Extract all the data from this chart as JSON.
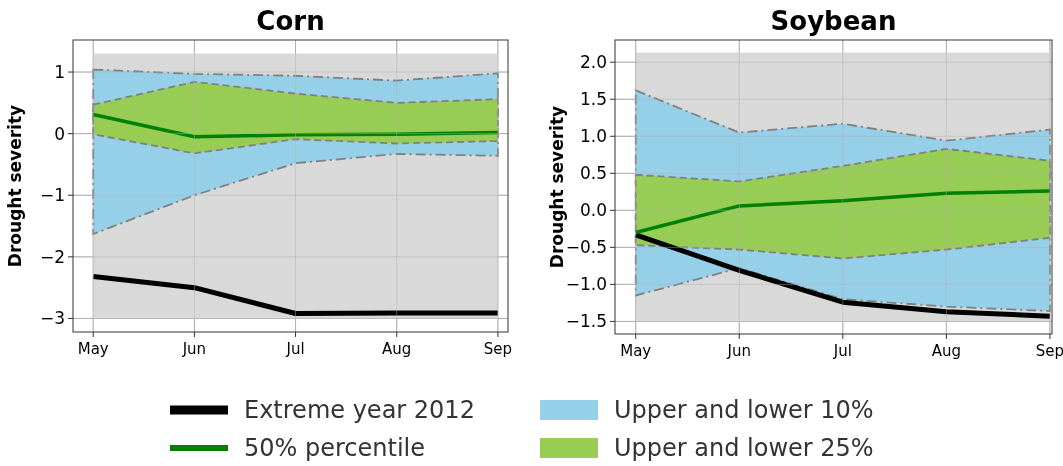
{
  "chart_data": [
    {
      "type": "line",
      "title": "Corn",
      "ylabel": "Drought severity",
      "categories": [
        "May",
        "Jun",
        "Jul",
        "Aug",
        "Sep"
      ],
      "ylim": [
        -3.22,
        1.52
      ],
      "yticks": [
        {
          "value": -3,
          "label": "−3"
        },
        {
          "value": -2,
          "label": "−2"
        },
        {
          "value": -1,
          "label": "−1"
        },
        0,
        1
      ],
      "grid": true,
      "legend": "bottom",
      "bands": [
        {
          "axis": "y",
          "from": -3,
          "to": 1.3,
          "color": "#d9d9d9"
        }
      ],
      "series": [
        {
          "name": "Upper and lower 10%",
          "color": "#95cfe8",
          "line_style": "dashdot",
          "values": [
            null,
            null,
            null,
            null,
            null
          ],
          "lower": [
            -1.63,
            -1.0,
            -0.48,
            -0.33,
            -0.36
          ],
          "upper": [
            1.04,
            0.97,
            0.94,
            0.86,
            0.98
          ]
        },
        {
          "name": "Upper and lower 25%",
          "color": "#97cc55",
          "line_style": "dashed",
          "values": [
            null,
            null,
            null,
            null,
            null
          ],
          "lower": [
            -0.01,
            -0.32,
            -0.09,
            -0.16,
            -0.12
          ],
          "upper": [
            0.47,
            0.84,
            0.65,
            0.5,
            0.56
          ]
        },
        {
          "name": "Extreme year 2012",
          "color": "#000000",
          "values": [
            -2.32,
            -2.5,
            -2.92,
            -2.91,
            -2.91
          ]
        },
        {
          "name": "50% percentile",
          "color": "#008000",
          "values": [
            0.31,
            -0.05,
            -0.02,
            -0.01,
            0.02
          ]
        }
      ]
    },
    {
      "type": "line",
      "title": "Soybean",
      "ylabel": "Drought severity",
      "categories": [
        "May",
        "Jun",
        "Jul",
        "Aug",
        "Sep"
      ],
      "ylim": [
        -1.67,
        2.3
      ],
      "yticks": [
        {
          "value": -1.5,
          "label": "−1.5"
        },
        {
          "value": -1,
          "label": "−1.0"
        },
        {
          "value": -0.5,
          "label": "−0.5"
        },
        {
          "value": 0,
          "label": "0.0"
        },
        {
          "value": 0.5,
          "label": "0.5"
        },
        {
          "value": 1,
          "label": "1.0"
        },
        {
          "value": 1.5,
          "label": "1.5"
        },
        {
          "value": 2,
          "label": "2.0"
        }
      ],
      "grid": true,
      "bands": [
        {
          "axis": "y",
          "from": -1.5,
          "to": 2.13,
          "color": "#d9d9d9"
        }
      ],
      "series": [
        {
          "color": "#95cfe8",
          "line_style": "dashdot",
          "values": [
            null,
            null,
            null,
            null,
            null
          ],
          "lower": [
            -1.15,
            -0.78,
            -1.2,
            -1.3,
            -1.36
          ],
          "upper": [
            1.62,
            1.05,
            1.17,
            0.94,
            1.09
          ]
        },
        {
          "color": "#97cc55",
          "line_style": "dashed",
          "values": [
            null,
            null,
            null,
            null,
            null
          ],
          "lower": [
            -0.47,
            -0.53,
            -0.65,
            -0.53,
            -0.37
          ],
          "upper": [
            0.48,
            0.39,
            0.6,
            0.83,
            0.67
          ]
        },
        {
          "color": "#000000",
          "values": [
            -0.33,
            -0.81,
            -1.24,
            -1.37,
            -1.43
          ]
        },
        {
          "color": "#008000",
          "values": [
            -0.3,
            0.06,
            0.13,
            0.23,
            0.26
          ]
        }
      ]
    }
  ]
}
